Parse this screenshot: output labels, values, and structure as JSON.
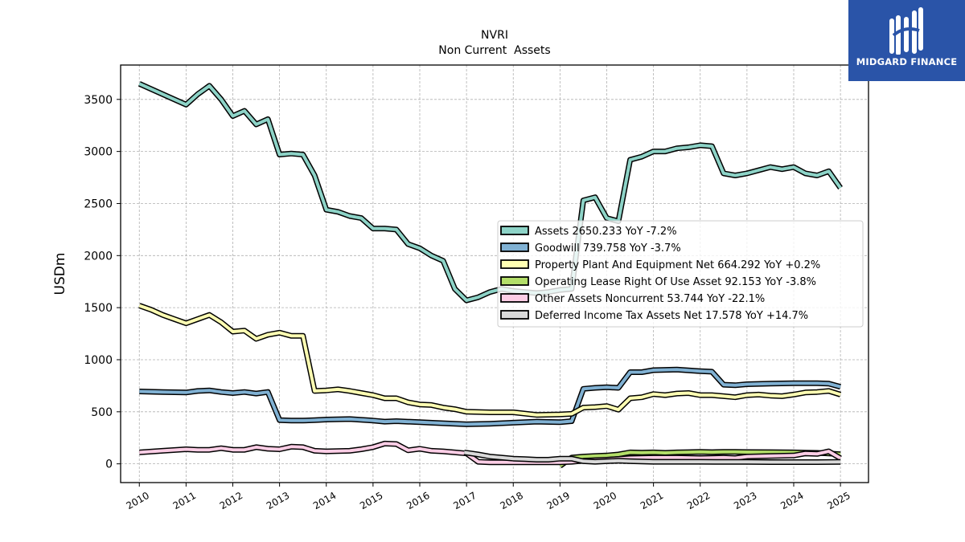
{
  "chart_data": {
    "type": "line",
    "title": "NVRI",
    "subtitle": "Non Current  Assets",
    "ylabel": "USDm",
    "xlabel": "",
    "xlim": [
      2009.6,
      2025.6
    ],
    "ylim": [
      -180,
      3830
    ],
    "x_ticks": [
      2010,
      2011,
      2012,
      2013,
      2014,
      2015,
      2016,
      2017,
      2018,
      2019,
      2020,
      2021,
      2022,
      2023,
      2024,
      2025
    ],
    "y_ticks": [
      0,
      500,
      1000,
      1500,
      2000,
      2500,
      3000,
      3500
    ],
    "grid": true,
    "legend_position": "center-right",
    "series": [
      {
        "name": "Assets",
        "legend": "Assets  2650.233 YoY -7.2%",
        "color": "#8dd3c7",
        "points": [
          [
            2010,
            3650
          ],
          [
            2010.25,
            3600
          ],
          [
            2010.5,
            3550
          ],
          [
            2010.75,
            3500
          ],
          [
            2011,
            3450
          ],
          [
            2011.25,
            3550
          ],
          [
            2011.5,
            3630
          ],
          [
            2011.75,
            3500
          ],
          [
            2012,
            3340
          ],
          [
            2012.25,
            3390
          ],
          [
            2012.5,
            3260
          ],
          [
            2012.75,
            3310
          ],
          [
            2013,
            2970
          ],
          [
            2013.25,
            2980
          ],
          [
            2013.5,
            2970
          ],
          [
            2013.75,
            2770
          ],
          [
            2014,
            2440
          ],
          [
            2014.25,
            2420
          ],
          [
            2014.5,
            2380
          ],
          [
            2014.75,
            2360
          ],
          [
            2015,
            2260
          ],
          [
            2015.25,
            2260
          ],
          [
            2015.5,
            2250
          ],
          [
            2015.75,
            2110
          ],
          [
            2016,
            2070
          ],
          [
            2016.25,
            2000
          ],
          [
            2016.5,
            1950
          ],
          [
            2016.75,
            1680
          ],
          [
            2017,
            1570
          ],
          [
            2017.25,
            1600
          ],
          [
            2017.5,
            1650
          ],
          [
            2017.75,
            1680
          ],
          [
            2018,
            1660
          ],
          [
            2018.25,
            1650
          ],
          [
            2018.5,
            1640
          ],
          [
            2018.75,
            1650
          ],
          [
            2019,
            1670
          ],
          [
            2019.25,
            1680
          ],
          [
            2019.5,
            2530
          ],
          [
            2019.75,
            2560
          ],
          [
            2020,
            2360
          ],
          [
            2020.25,
            2330
          ],
          [
            2020.5,
            2920
          ],
          [
            2020.75,
            2950
          ],
          [
            2021,
            3000
          ],
          [
            2021.25,
            3000
          ],
          [
            2021.5,
            3030
          ],
          [
            2021.75,
            3040
          ],
          [
            2022,
            3060
          ],
          [
            2022.25,
            3050
          ],
          [
            2022.5,
            2790
          ],
          [
            2022.75,
            2770
          ],
          [
            2023,
            2790
          ],
          [
            2023.25,
            2820
          ],
          [
            2023.5,
            2850
          ],
          [
            2023.75,
            2830
          ],
          [
            2024,
            2850
          ],
          [
            2024.25,
            2790
          ],
          [
            2024.5,
            2770
          ],
          [
            2024.75,
            2810
          ],
          [
            2025,
            2650
          ]
        ]
      },
      {
        "name": "Goodwill",
        "legend": "Goodwill  739.758 YoY -3.7%",
        "color": "#80b1d3",
        "points": [
          [
            2010,
            695
          ],
          [
            2010.5,
            690
          ],
          [
            2011,
            685
          ],
          [
            2011.25,
            700
          ],
          [
            2011.5,
            705
          ],
          [
            2011.75,
            690
          ],
          [
            2012,
            680
          ],
          [
            2012.25,
            690
          ],
          [
            2012.5,
            675
          ],
          [
            2012.75,
            690
          ],
          [
            2013,
            420
          ],
          [
            2013.25,
            415
          ],
          [
            2013.5,
            415
          ],
          [
            2013.75,
            420
          ],
          [
            2014,
            425
          ],
          [
            2014.5,
            430
          ],
          [
            2015,
            415
          ],
          [
            2015.25,
            405
          ],
          [
            2015.5,
            410
          ],
          [
            2016,
            400
          ],
          [
            2016.5,
            390
          ],
          [
            2017,
            380
          ],
          [
            2017.5,
            385
          ],
          [
            2018,
            395
          ],
          [
            2018.5,
            405
          ],
          [
            2019,
            400
          ],
          [
            2019.25,
            410
          ],
          [
            2019.5,
            720
          ],
          [
            2019.75,
            730
          ],
          [
            2020,
            735
          ],
          [
            2020.25,
            730
          ],
          [
            2020.5,
            880
          ],
          [
            2020.75,
            880
          ],
          [
            2021,
            900
          ],
          [
            2021.5,
            905
          ],
          [
            2022,
            890
          ],
          [
            2022.25,
            885
          ],
          [
            2022.5,
            760
          ],
          [
            2022.75,
            755
          ],
          [
            2023,
            765
          ],
          [
            2023.5,
            770
          ],
          [
            2024,
            775
          ],
          [
            2024.5,
            775
          ],
          [
            2024.75,
            770
          ],
          [
            2025,
            740
          ]
        ]
      },
      {
        "name": "Property Plant And Equipment Net",
        "legend": "Property Plant And Equipment Net  664.292 YoY +0.2%",
        "color": "#ffffb3",
        "points": [
          [
            2010,
            1520
          ],
          [
            2010.25,
            1480
          ],
          [
            2010.5,
            1430
          ],
          [
            2010.75,
            1390
          ],
          [
            2011,
            1350
          ],
          [
            2011.25,
            1390
          ],
          [
            2011.5,
            1430
          ],
          [
            2011.75,
            1360
          ],
          [
            2012,
            1270
          ],
          [
            2012.25,
            1280
          ],
          [
            2012.5,
            1200
          ],
          [
            2012.75,
            1240
          ],
          [
            2013,
            1260
          ],
          [
            2013.25,
            1230
          ],
          [
            2013.5,
            1230
          ],
          [
            2013.75,
            700
          ],
          [
            2014,
            705
          ],
          [
            2014.25,
            715
          ],
          [
            2014.5,
            700
          ],
          [
            2014.75,
            680
          ],
          [
            2015,
            660
          ],
          [
            2015.25,
            630
          ],
          [
            2015.5,
            630
          ],
          [
            2015.75,
            590
          ],
          [
            2016,
            570
          ],
          [
            2016.25,
            565
          ],
          [
            2016.5,
            540
          ],
          [
            2016.75,
            525
          ],
          [
            2017,
            500
          ],
          [
            2017.5,
            495
          ],
          [
            2018,
            495
          ],
          [
            2018.5,
            470
          ],
          [
            2019,
            475
          ],
          [
            2019.25,
            480
          ],
          [
            2019.5,
            540
          ],
          [
            2019.75,
            545
          ],
          [
            2020,
            555
          ],
          [
            2020.25,
            520
          ],
          [
            2020.5,
            630
          ],
          [
            2020.75,
            640
          ],
          [
            2021,
            670
          ],
          [
            2021.25,
            660
          ],
          [
            2021.5,
            675
          ],
          [
            2021.75,
            680
          ],
          [
            2022,
            660
          ],
          [
            2022.25,
            660
          ],
          [
            2022.5,
            650
          ],
          [
            2022.75,
            640
          ],
          [
            2023,
            660
          ],
          [
            2023.25,
            665
          ],
          [
            2023.5,
            655
          ],
          [
            2023.75,
            650
          ],
          [
            2024,
            665
          ],
          [
            2024.25,
            685
          ],
          [
            2024.5,
            690
          ],
          [
            2024.75,
            700
          ],
          [
            2025,
            665
          ]
        ]
      },
      {
        "name": "Operating Lease Right Of Use Asset",
        "legend": "Operating Lease Right Of Use Asset  92.153 YoY -3.8%",
        "color": "#b3de69",
        "points": [
          [
            2019,
            -20
          ],
          [
            2019.25,
            60
          ],
          [
            2019.5,
            70
          ],
          [
            2019.75,
            75
          ],
          [
            2020,
            80
          ],
          [
            2020.25,
            90
          ],
          [
            2020.5,
            110
          ],
          [
            2020.75,
            108
          ],
          [
            2021,
            110
          ],
          [
            2021.25,
            105
          ],
          [
            2021.5,
            110
          ],
          [
            2021.75,
            112
          ],
          [
            2022,
            115
          ],
          [
            2022.25,
            112
          ],
          [
            2022.5,
            115
          ],
          [
            2022.75,
            115
          ],
          [
            2023,
            113
          ],
          [
            2023.5,
            112
          ],
          [
            2024,
            110
          ],
          [
            2024.25,
            108
          ],
          [
            2024.5,
            105
          ],
          [
            2024.75,
            100
          ],
          [
            2025,
            92
          ]
        ]
      },
      {
        "name": "Other Assets Noncurrent",
        "legend": "Other Assets Noncurrent  53.744 YoY -22.1%",
        "color": "#fccde5",
        "points": [
          [
            2010,
            110
          ],
          [
            2010.5,
            125
          ],
          [
            2011,
            140
          ],
          [
            2011.25,
            135
          ],
          [
            2011.5,
            135
          ],
          [
            2011.75,
            150
          ],
          [
            2012,
            135
          ],
          [
            2012.25,
            135
          ],
          [
            2012.5,
            160
          ],
          [
            2012.75,
            145
          ],
          [
            2013,
            140
          ],
          [
            2013.25,
            165
          ],
          [
            2013.5,
            160
          ],
          [
            2013.75,
            125
          ],
          [
            2014,
            120
          ],
          [
            2014.5,
            125
          ],
          [
            2014.75,
            140
          ],
          [
            2015,
            160
          ],
          [
            2015.25,
            195
          ],
          [
            2015.5,
            190
          ],
          [
            2015.75,
            130
          ],
          [
            2016,
            145
          ],
          [
            2016.25,
            125
          ],
          [
            2016.5,
            120
          ],
          [
            2016.75,
            110
          ],
          [
            2017,
            100
          ],
          [
            2017.25,
            20
          ],
          [
            2017.5,
            15
          ],
          [
            2018,
            15
          ],
          [
            2018.5,
            15
          ],
          [
            2019,
            15
          ],
          [
            2019.25,
            20
          ],
          [
            2019.5,
            30
          ],
          [
            2019.75,
            35
          ],
          [
            2020,
            40
          ],
          [
            2020.5,
            55
          ],
          [
            2021,
            60
          ],
          [
            2021.5,
            60
          ],
          [
            2022,
            55
          ],
          [
            2022.5,
            60
          ],
          [
            2022.75,
            55
          ],
          [
            2023,
            70
          ],
          [
            2023.5,
            75
          ],
          [
            2024,
            80
          ],
          [
            2024.25,
            100
          ],
          [
            2024.5,
            95
          ],
          [
            2024.75,
            120
          ],
          [
            2025,
            54
          ]
        ]
      },
      {
        "name": "Deferred Income Tax Assets Net",
        "legend": "Deferred Income Tax Assets Net  17.578 YoY +14.7%",
        "color": "#d9d9d9",
        "points": [
          [
            2016.95,
            110
          ],
          [
            2017.25,
            90
          ],
          [
            2017.5,
            70
          ],
          [
            2017.75,
            60
          ],
          [
            2018,
            50
          ],
          [
            2018.25,
            45
          ],
          [
            2018.5,
            40
          ],
          [
            2018.75,
            40
          ],
          [
            2019,
            50
          ],
          [
            2019.25,
            50
          ],
          [
            2019.5,
            25
          ],
          [
            2019.75,
            20
          ],
          [
            2020,
            25
          ],
          [
            2020.25,
            30
          ],
          [
            2020.5,
            25
          ],
          [
            2021,
            20
          ],
          [
            2021.5,
            20
          ],
          [
            2022,
            20
          ],
          [
            2022.5,
            18
          ],
          [
            2023,
            18
          ],
          [
            2023.5,
            17
          ],
          [
            2024,
            17
          ],
          [
            2024.5,
            17
          ],
          [
            2025,
            18
          ]
        ]
      }
    ]
  },
  "logo": {
    "text": "MIDGARD FINANCE",
    "background": "#2a54a8"
  }
}
